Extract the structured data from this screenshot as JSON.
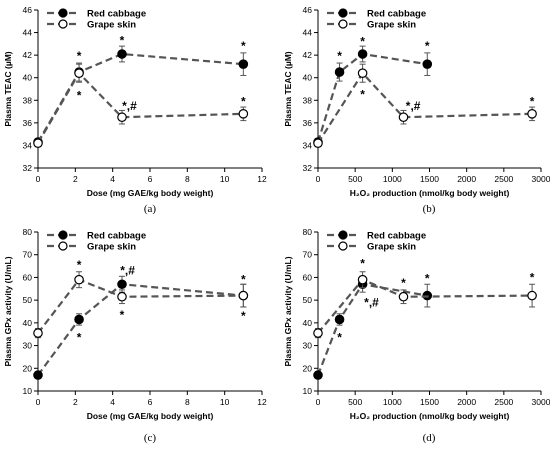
{
  "chart_data": [
    {
      "id": "a",
      "type": "line",
      "panel_label": "(a)",
      "xlabel": "Dose (mg GAE/kg body weight)",
      "ylabel": "Plasma TEAC (µM)",
      "xlim": [
        0,
        12
      ],
      "ylim": [
        32,
        46
      ],
      "xticks": [
        "0",
        "2",
        "4",
        "6",
        "8",
        "10",
        "12"
      ],
      "yticks": [
        "32",
        "34",
        "36",
        "38",
        "40",
        "42",
        "44",
        "46"
      ],
      "legend": "top-left",
      "series": [
        {
          "name": "Red cabbage",
          "marker": "filled",
          "x": [
            0,
            2.2,
            4.5,
            11
          ],
          "y": [
            34.3,
            40.5,
            42.1,
            41.2
          ],
          "err": [
            0.3,
            0.8,
            0.7,
            1.0
          ]
        },
        {
          "name": "Grape skin",
          "marker": "open",
          "x": [
            0,
            2.2,
            4.5,
            11
          ],
          "y": [
            34.2,
            40.4,
            36.5,
            36.8
          ],
          "err": [
            0.3,
            0.8,
            0.6,
            0.6
          ]
        }
      ],
      "annotations": [
        {
          "text": "*",
          "x": 2.2,
          "y": 42.0
        },
        {
          "text": "*",
          "x": 2.2,
          "y": 38.5
        },
        {
          "text": "*",
          "x": 4.5,
          "y": 43.4
        },
        {
          "text": "*,#",
          "x": 4.9,
          "y": 37.6
        },
        {
          "text": "*",
          "x": 11,
          "y": 42.9
        },
        {
          "text": "*",
          "x": 11,
          "y": 38.0
        }
      ]
    },
    {
      "id": "b",
      "type": "line",
      "panel_label": "(b)",
      "xlabel": "H₂O₂ production (nmol/kg body weight)",
      "ylabel": "Plasma TEAC (µM)",
      "xlim": [
        0,
        3000
      ],
      "ylim": [
        32,
        46
      ],
      "xticks": [
        "0",
        "500",
        "1000",
        "1500",
        "2000",
        "2500",
        "3000"
      ],
      "yticks": [
        "32",
        "34",
        "36",
        "38",
        "40",
        "42",
        "44",
        "46"
      ],
      "legend": "top-left",
      "series": [
        {
          "name": "Red cabbage",
          "marker": "filled",
          "x": [
            0,
            290,
            600,
            1470
          ],
          "y": [
            34.3,
            40.5,
            42.1,
            41.2
          ],
          "err": [
            0.3,
            0.8,
            0.7,
            1.0
          ]
        },
        {
          "name": "Grape skin",
          "marker": "open",
          "x": [
            0,
            600,
            1150,
            2880
          ],
          "y": [
            34.2,
            40.4,
            36.5,
            36.8
          ],
          "err": [
            0.3,
            0.8,
            0.6,
            0.6
          ]
        }
      ],
      "annotations": [
        {
          "text": "*",
          "x": 290,
          "y": 42.0
        },
        {
          "text": "*",
          "x": 600,
          "y": 43.3
        },
        {
          "text": "*",
          "x": 600,
          "y": 38.6
        },
        {
          "text": "*,#",
          "x": 1280,
          "y": 37.6
        },
        {
          "text": "*",
          "x": 1470,
          "y": 42.9
        },
        {
          "text": "*",
          "x": 2880,
          "y": 38.0
        }
      ]
    },
    {
      "id": "c",
      "type": "line",
      "panel_label": "(c)",
      "xlabel": "Dose (mg GAE/kg body weight)",
      "ylabel": "Plasma GPx activity (U/mL)",
      "xlim": [
        0,
        12
      ],
      "ylim": [
        10,
        80
      ],
      "xticks": [
        "0",
        "2",
        "4",
        "6",
        "8",
        "10",
        "12"
      ],
      "yticks": [
        "10",
        "20",
        "30",
        "40",
        "50",
        "60",
        "70",
        "80"
      ],
      "legend": "top-left",
      "series": [
        {
          "name": "Red cabbage",
          "marker": "filled",
          "x": [
            0,
            2.2,
            4.5,
            11
          ],
          "y": [
            17,
            41.5,
            57,
            52
          ],
          "err": [
            1.5,
            2.5,
            3.5,
            5.0
          ]
        },
        {
          "name": "Grape skin",
          "marker": "open",
          "x": [
            0,
            2.2,
            4.5,
            11
          ],
          "y": [
            35.5,
            59,
            51.5,
            52
          ],
          "err": [
            2.0,
            3.5,
            3.0,
            5.0
          ]
        }
      ],
      "annotations": [
        {
          "text": "*",
          "x": 2.2,
          "y": 66
        },
        {
          "text": "*",
          "x": 2.2,
          "y": 34
        },
        {
          "text": "*,#",
          "x": 4.8,
          "y": 63.5
        },
        {
          "text": "*",
          "x": 4.5,
          "y": 44
        },
        {
          "text": "*",
          "x": 11,
          "y": 59.5
        },
        {
          "text": "*",
          "x": 11,
          "y": 43.5
        }
      ]
    },
    {
      "id": "d",
      "type": "line",
      "panel_label": "(d)",
      "xlabel": "H₂O₂ production (nmol/kg body weight)",
      "ylabel": "Plasma GPx activity (U/mL)",
      "xlim": [
        0,
        3000
      ],
      "ylim": [
        10,
        80
      ],
      "xticks": [
        "0",
        "500",
        "1000",
        "1500",
        "2000",
        "2500",
        "3000"
      ],
      "yticks": [
        "10",
        "20",
        "30",
        "40",
        "50",
        "60",
        "70",
        "80"
      ],
      "legend": "top-left",
      "series": [
        {
          "name": "Red cabbage",
          "marker": "filled",
          "x": [
            0,
            290,
            600,
            1470
          ],
          "y": [
            17,
            41.5,
            57,
            52
          ],
          "err": [
            1.5,
            2.5,
            3.5,
            5.0
          ]
        },
        {
          "name": "Grape skin",
          "marker": "open",
          "x": [
            0,
            600,
            1150,
            2880
          ],
          "y": [
            35.5,
            59,
            51.5,
            52
          ],
          "err": [
            2.0,
            3.5,
            3.0,
            5.0
          ]
        }
      ],
      "annotations": [
        {
          "text": "*",
          "x": 290,
          "y": 34
        },
        {
          "text": "*",
          "x": 600,
          "y": 66.5
        },
        {
          "text": "*,#",
          "x": 720,
          "y": 49.5
        },
        {
          "text": "*",
          "x": 1150,
          "y": 58
        },
        {
          "text": "*",
          "x": 1470,
          "y": 60
        },
        {
          "text": "*",
          "x": 2880,
          "y": 60.5
        }
      ]
    }
  ]
}
